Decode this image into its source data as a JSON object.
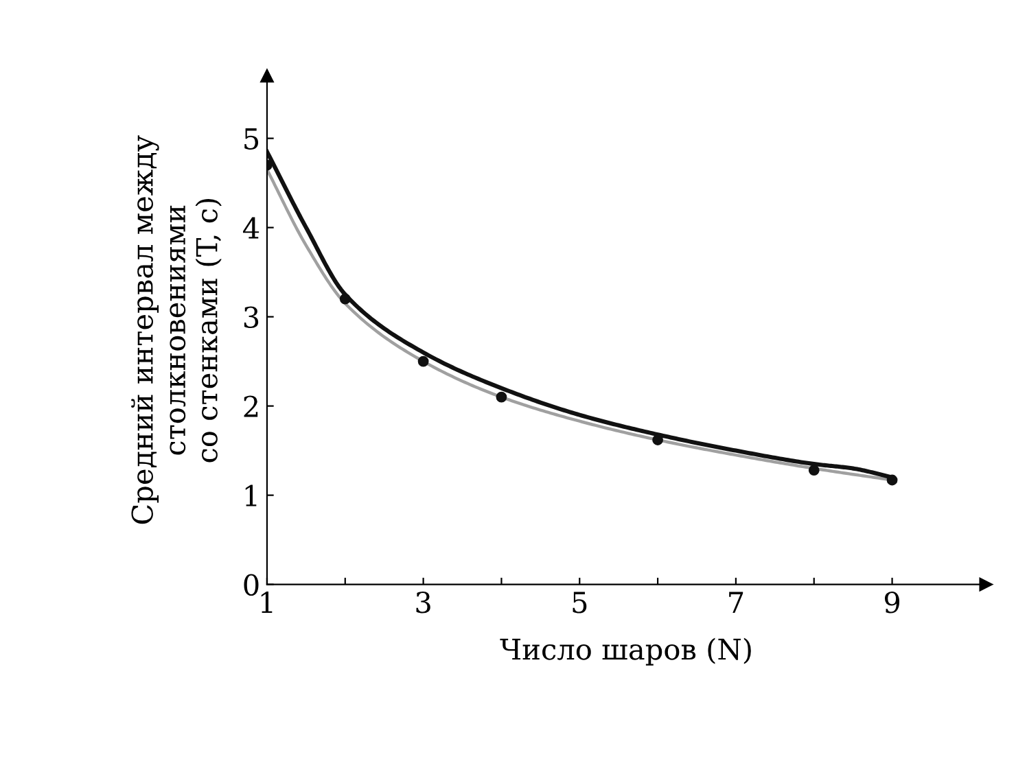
{
  "chart_data": {
    "type": "line",
    "xlabel": "Число шаров (N)",
    "ylabel": "Средний интервал между\nстолкновениями\nсо стенками (T, с)",
    "xlim": [
      1,
      10.2
    ],
    "ylim": [
      0,
      5.7
    ],
    "xticks": [
      1,
      {
        "value": 2,
        "label": null
      },
      3,
      {
        "value": 4,
        "label": null
      },
      5,
      {
        "value": 6,
        "label": null
      },
      7,
      {
        "value": 8,
        "label": null
      },
      9
    ],
    "yticks": [
      0,
      1,
      2,
      3,
      4,
      5
    ],
    "grid": false,
    "legend": false,
    "series": [
      {
        "color": "#a0a0a0",
        "marker": "none",
        "line_style": "solid",
        "x": [
          1,
          1.5,
          2,
          3,
          4,
          5,
          6,
          7,
          8,
          9
        ],
        "values": [
          4.65,
          3.8,
          3.15,
          2.5,
          2.1,
          1.83,
          1.62,
          1.45,
          1.3,
          1.17
        ]
      },
      {
        "color": "#111111",
        "marker": "none",
        "line_style": "solid",
        "x": [
          1,
          1.5,
          2,
          3,
          4,
          5,
          6,
          7,
          8,
          8.5,
          9
        ],
        "values": [
          4.85,
          4.0,
          3.25,
          2.6,
          2.2,
          1.9,
          1.68,
          1.5,
          1.35,
          1.3,
          1.2
        ]
      },
      {
        "type": "scatter",
        "color": "#111111",
        "marker": "circle",
        "x": [
          1,
          2,
          3,
          4,
          6,
          8,
          9
        ],
        "values": [
          4.7,
          3.2,
          2.5,
          2.1,
          1.62,
          1.28,
          1.17
        ]
      }
    ]
  }
}
